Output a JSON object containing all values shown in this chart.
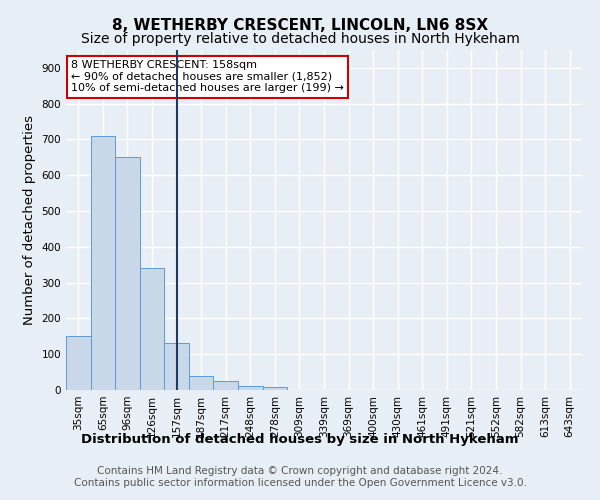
{
  "title1": "8, WETHERBY CRESCENT, LINCOLN, LN6 8SX",
  "title2": "Size of property relative to detached houses in North Hykeham",
  "xlabel": "Distribution of detached houses by size in North Hykeham",
  "ylabel": "Number of detached properties",
  "footer1": "Contains HM Land Registry data © Crown copyright and database right 2024.",
  "footer2": "Contains public sector information licensed under the Open Government Licence v3.0.",
  "annotation_line1": "8 WETHERBY CRESCENT: 158sqm",
  "annotation_line2": "← 90% of detached houses are smaller (1,852)",
  "annotation_line3": "10% of semi-detached houses are larger (199) →",
  "categories": [
    "35sqm",
    "65sqm",
    "96sqm",
    "126sqm",
    "157sqm",
    "187sqm",
    "217sqm",
    "248sqm",
    "278sqm",
    "309sqm",
    "339sqm",
    "369sqm",
    "400sqm",
    "430sqm",
    "461sqm",
    "491sqm",
    "521sqm",
    "552sqm",
    "582sqm",
    "613sqm",
    "643sqm"
  ],
  "bar_starts": [
    35,
    65,
    96,
    126,
    157,
    187,
    217,
    248,
    278,
    309,
    339,
    369,
    400,
    430,
    461,
    491,
    521,
    552,
    582,
    613,
    643
  ],
  "values": [
    150,
    710,
    650,
    340,
    130,
    40,
    25,
    10,
    8,
    0,
    0,
    0,
    0,
    0,
    0,
    0,
    0,
    0,
    0,
    0,
    0
  ],
  "bar_color": "#c8d8e8",
  "bar_edge_color": "#5b9bd5",
  "vertical_line_x": 157,
  "vertical_line_color": "#1f3864",
  "ylim": [
    0,
    950
  ],
  "yticks": [
    0,
    100,
    200,
    300,
    400,
    500,
    600,
    700,
    800,
    900
  ],
  "bg_color": "#e8eef5",
  "plot_bg_color": "#e8eef5",
  "grid_color": "#ffffff",
  "annotation_box_color": "#ffffff",
  "annotation_box_edge": "#cc0000",
  "title1_fontsize": 11,
  "title2_fontsize": 10,
  "tick_fontsize": 7.5,
  "label_fontsize": 9.5,
  "footer_fontsize": 7.5
}
